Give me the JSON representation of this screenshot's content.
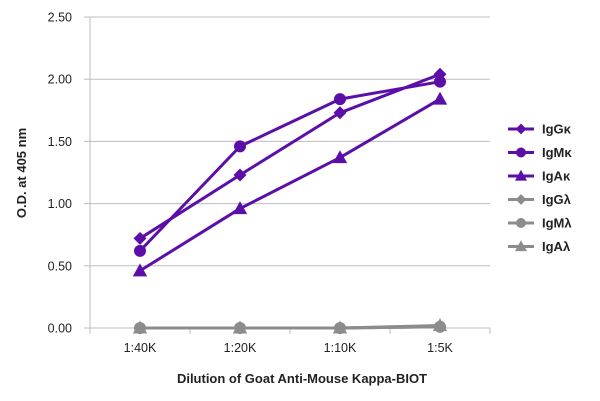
{
  "chart_data": {
    "type": "line",
    "title": "",
    "xlabel": "Dilution of Goat Anti-Mouse Kappa-BIOT",
    "ylabel": "O.D. at 405 nm",
    "categories": [
      "1:40K",
      "1:20K",
      "1:10K",
      "1:5K"
    ],
    "ylim": [
      0,
      2.5
    ],
    "yticks": [
      "0.00",
      "0.50",
      "1.00",
      "1.50",
      "2.00",
      "2.50"
    ],
    "grid": "horizontal",
    "legend": "right",
    "series": [
      {
        "name": "IgGκ",
        "values": [
          0.72,
          1.23,
          1.73,
          2.04
        ],
        "color": "#5b0fa8",
        "marker": "diamond"
      },
      {
        "name": "IgMκ",
        "values": [
          0.62,
          1.46,
          1.84,
          1.98
        ],
        "color": "#5b0fa8",
        "marker": "circle"
      },
      {
        "name": "IgAκ",
        "values": [
          0.46,
          0.96,
          1.37,
          1.84
        ],
        "color": "#5b0fa8",
        "marker": "triangle"
      },
      {
        "name": "IgGλ",
        "values": [
          0.0,
          0.0,
          0.0,
          0.01
        ],
        "color": "#8c8c8c",
        "marker": "diamond"
      },
      {
        "name": "IgMλ",
        "values": [
          0.0,
          0.0,
          0.0,
          0.01
        ],
        "color": "#8c8c8c",
        "marker": "circle"
      },
      {
        "name": "IgAλ",
        "values": [
          0.0,
          0.0,
          0.0,
          0.02
        ],
        "color": "#8c8c8c",
        "marker": "triangle"
      }
    ]
  }
}
